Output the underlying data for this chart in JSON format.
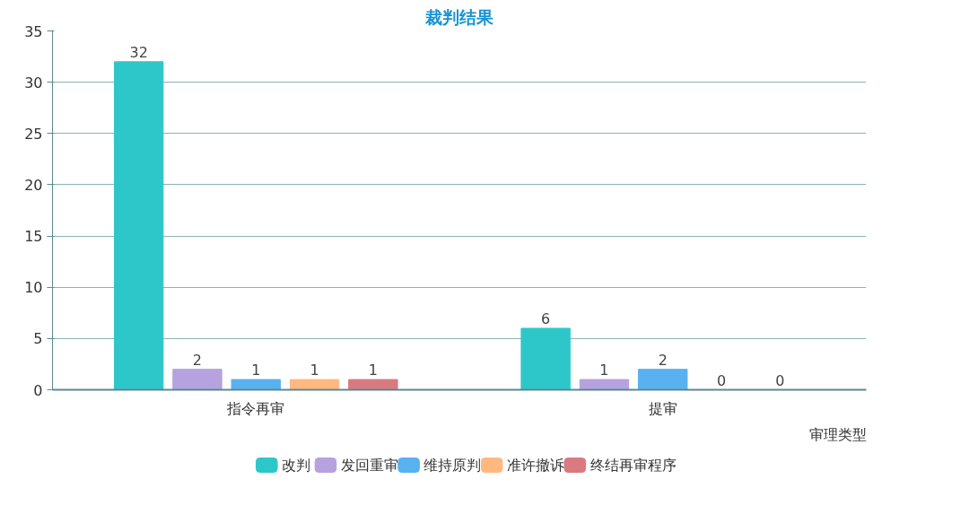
{
  "chart_data": {
    "type": "bar",
    "title": "裁判结果",
    "xlabel": "审理类型",
    "categories": [
      "指令再审",
      "提审"
    ],
    "series": [
      {
        "name": "改判",
        "color": "#2ec7c9",
        "values": [
          32,
          6
        ]
      },
      {
        "name": "发回重审",
        "color": "#b6a2de",
        "values": [
          2,
          1
        ]
      },
      {
        "name": "维持原判",
        "color": "#5ab1ef",
        "values": [
          1,
          2
        ]
      },
      {
        "name": "准许撤诉",
        "color": "#ffb980",
        "values": [
          1,
          0
        ]
      },
      {
        "name": "终结再审程序",
        "color": "#d87a80",
        "values": [
          1,
          0
        ]
      }
    ],
    "ylim": [
      0,
      35
    ],
    "yticks": [
      0,
      5,
      10,
      15,
      20,
      25,
      30,
      35
    ],
    "grid": "y",
    "legend": "bottom",
    "data_labels": true
  }
}
